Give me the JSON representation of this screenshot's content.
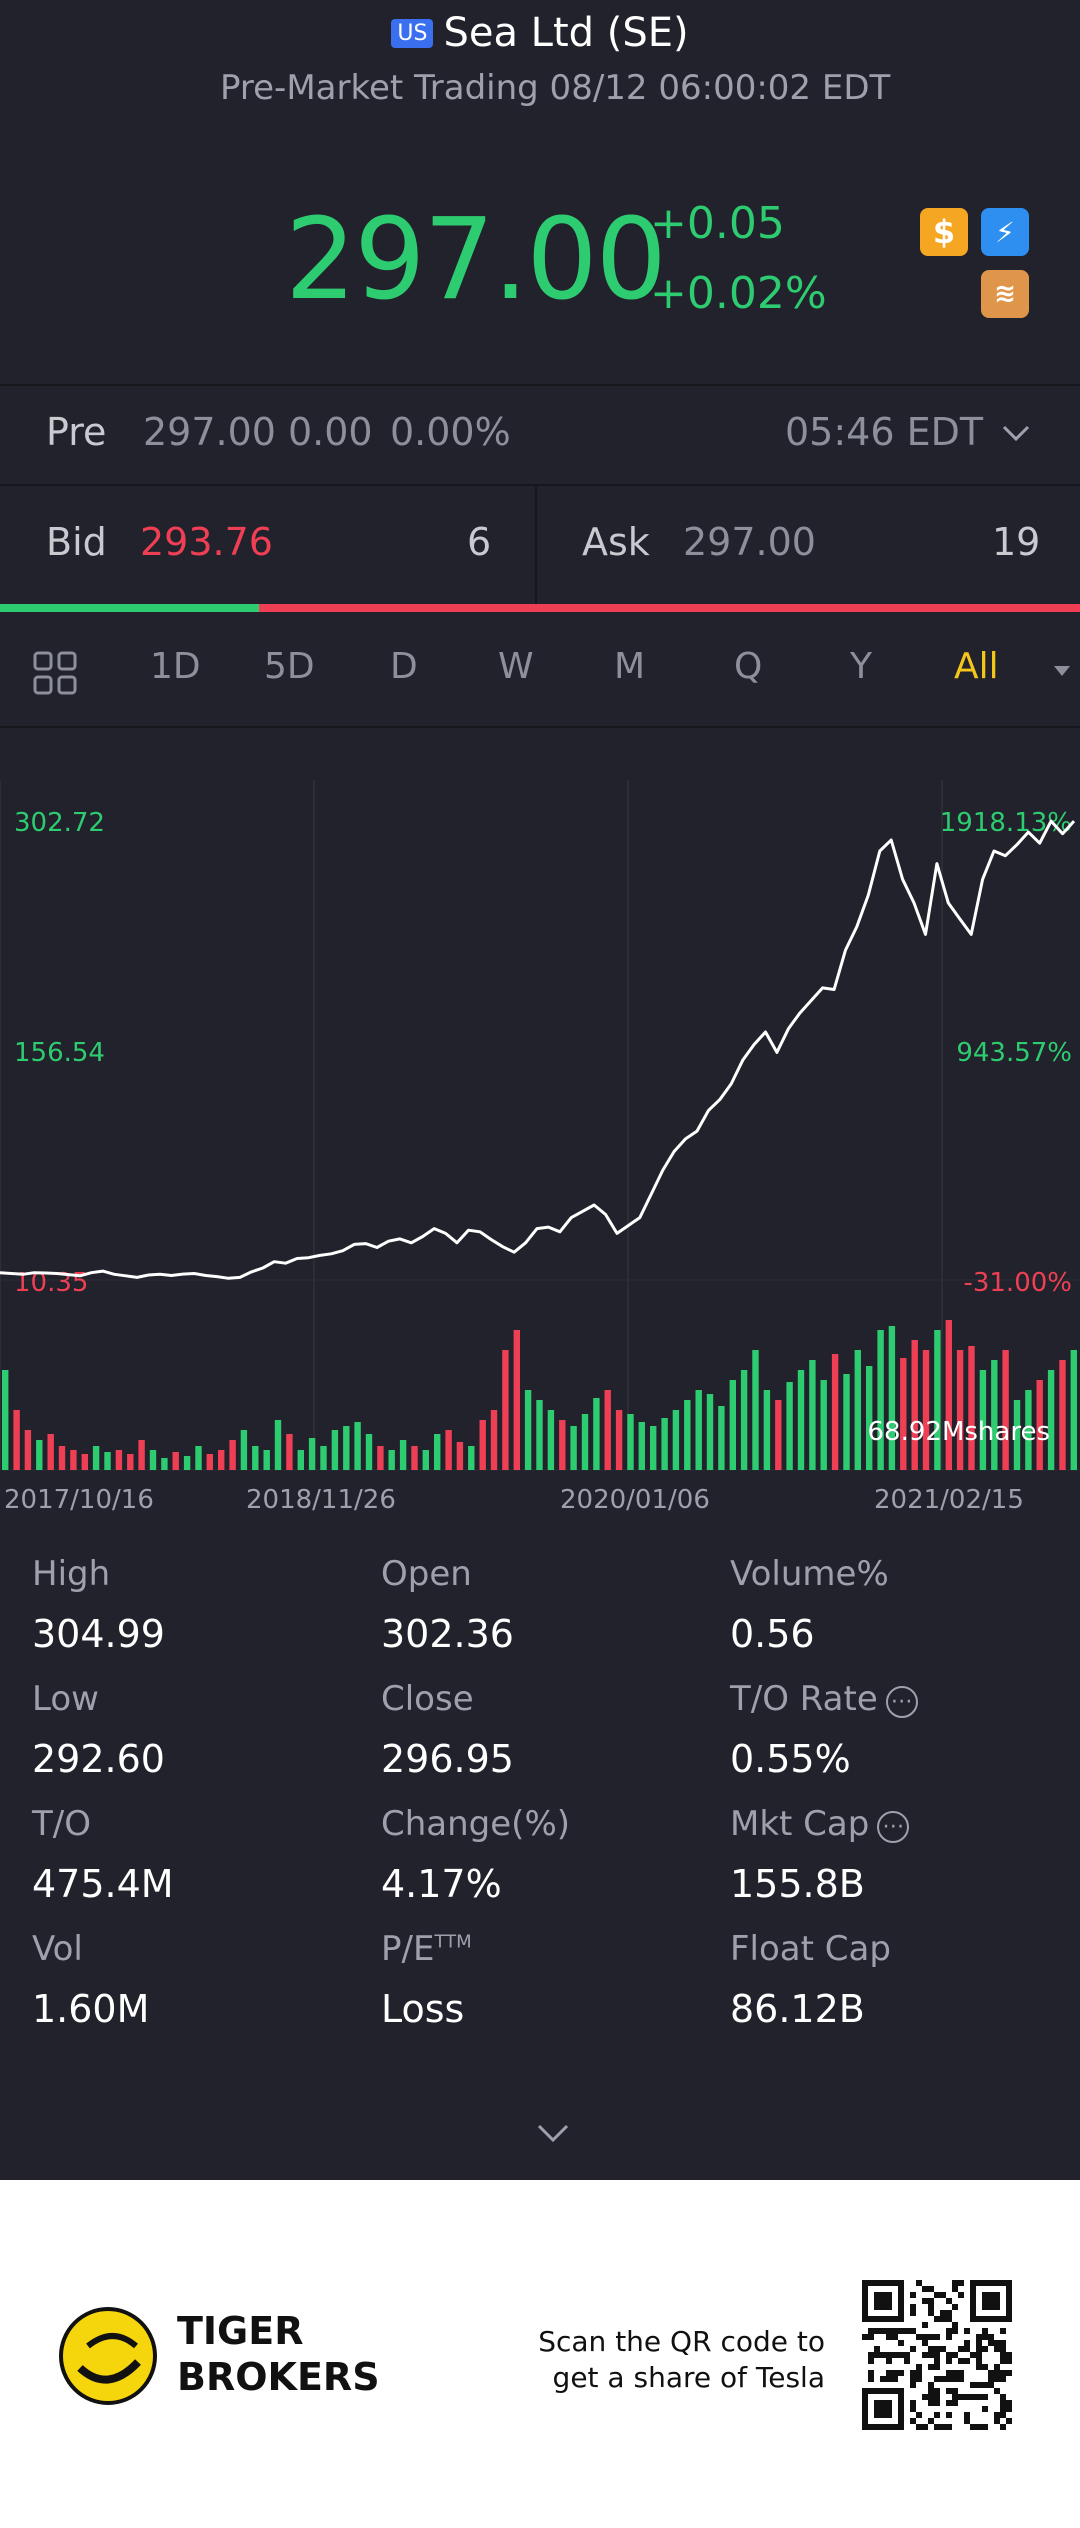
{
  "header": {
    "badge": "US",
    "title": "Sea Ltd (SE)",
    "subtitle": "Pre-Market Trading 08/12 06:00:02 EDT"
  },
  "quote": {
    "price": "297.00",
    "change": "+0.05",
    "change_pct": "+0.02%"
  },
  "pre": {
    "label": "Pre",
    "price": "297.00",
    "change": "0.00",
    "change_pct": "0.00%",
    "time": "05:46 EDT"
  },
  "bid_ask": {
    "bid_label": "Bid",
    "bid_price": "293.76",
    "bid_size": "6",
    "ask_label": "Ask",
    "ask_price": "297.00",
    "ask_size": "19",
    "bid_ratio": 0.24
  },
  "tabs": [
    "1D",
    "5D",
    "D",
    "W",
    "M",
    "Q",
    "Y",
    "All"
  ],
  "active_tab": "All",
  "chart_data": {
    "type": "line",
    "y_left_labels": [
      "302.72",
      "156.54",
      "10.35"
    ],
    "y_right_labels": [
      "1918.13%",
      "943.57%",
      "-31.00%"
    ],
    "x_labels": [
      "2017/10/16",
      "2018/11/26",
      "2020/01/06",
      "2021/02/15"
    ],
    "ylim": [
      10.35,
      302.72
    ],
    "volume_label": "68.92Mshares",
    "price_series": [
      15,
      14.5,
      14,
      15,
      14.8,
      14.5,
      13.8,
      13,
      15,
      16,
      14,
      13,
      12,
      13.5,
      14,
      13.2,
      14.1,
      14.5,
      13.2,
      12.5,
      11.4,
      12,
      15.5,
      18,
      22,
      21,
      24,
      24.5,
      26,
      27,
      29,
      33,
      33.5,
      31,
      35,
      36.5,
      34,
      38,
      43,
      40,
      34,
      42,
      41,
      36,
      31.5,
      28,
      34,
      43,
      44,
      41,
      50,
      54,
      58,
      52,
      40,
      45,
      50,
      65,
      80,
      92,
      100,
      105,
      118,
      125,
      135,
      150,
      160,
      168,
      155,
      170,
      180,
      188,
      196,
      195,
      220,
      235,
      255,
      283,
      290,
      265,
      250,
      230,
      275,
      250,
      240,
      230,
      265,
      283,
      280,
      287,
      295,
      288,
      302,
      294,
      302
    ],
    "volume_series": [
      50,
      30,
      20,
      15,
      18,
      12,
      10,
      8,
      12,
      9,
      10,
      8,
      15,
      10,
      6,
      9,
      7,
      12,
      8,
      10,
      15,
      20,
      12,
      10,
      25,
      18,
      10,
      16,
      12,
      20,
      22,
      24,
      18,
      12,
      10,
      15,
      12,
      10,
      18,
      20,
      14,
      12,
      25,
      30,
      60,
      70,
      40,
      35,
      30,
      25,
      22,
      28,
      36,
      40,
      30,
      28,
      24,
      22,
      26,
      30,
      35,
      40,
      38,
      32,
      45,
      50,
      60,
      40,
      35,
      44,
      50,
      55,
      45,
      58,
      48,
      60,
      52,
      70,
      72,
      56,
      65,
      60,
      70,
      75,
      60,
      62,
      50,
      55,
      60,
      35,
      40,
      45,
      50,
      55,
      60
    ]
  },
  "stats": [
    {
      "label": "High",
      "value": "304.99"
    },
    {
      "label": "Open",
      "value": "302.36"
    },
    {
      "label": "Volume%",
      "value": "0.56"
    },
    {
      "label": "Low",
      "value": "292.60"
    },
    {
      "label": "Close",
      "value": "296.95"
    },
    {
      "label": "T/O Rate",
      "value": "0.55%"
    },
    {
      "label": "T/O",
      "value": "475.4M"
    },
    {
      "label": "Change(%)",
      "value": "4.17%"
    },
    {
      "label": "Mkt Cap",
      "value": "155.8B"
    },
    {
      "label": "Vol",
      "value": "1.60M"
    },
    {
      "label": "P/E",
      "value": "Loss"
    },
    {
      "label": "Float Cap",
      "value": "86.12B"
    }
  ],
  "pe_superscript": "TTM",
  "footer": {
    "brand_line1": "TIGER",
    "brand_line2": "BROKERS",
    "promo_line1": "Scan the QR code to",
    "promo_line2": "get a share of Tesla"
  },
  "colors": {
    "background": "#21222b",
    "up": "#2ecc71",
    "down": "#ef3f55",
    "accent": "#f5c518"
  }
}
